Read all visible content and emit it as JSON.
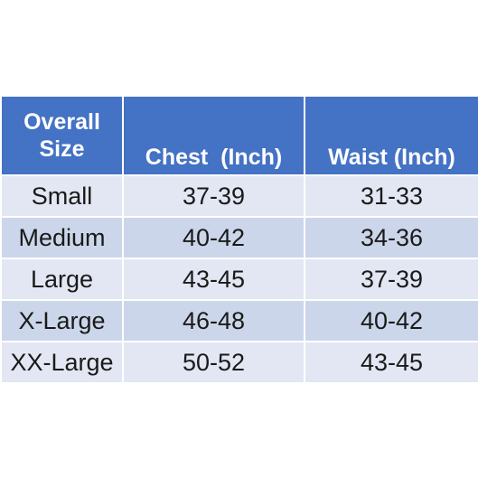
{
  "table": {
    "headers": {
      "size_line1": "Overall",
      "size_line2": "Size",
      "chest": "Chest  (Inch)",
      "waist": "Waist (Inch)"
    },
    "rows": [
      {
        "size": "Small",
        "chest": "37-39",
        "waist": "31-33"
      },
      {
        "size": "Medium",
        "chest": "40-42",
        "waist": "34-36"
      },
      {
        "size": "Large",
        "chest": "43-45",
        "waist": "37-39"
      },
      {
        "size": "X-Large",
        "chest": "46-48",
        "waist": "40-42"
      },
      {
        "size": "XX-Large",
        "chest": "50-52",
        "waist": "43-45"
      }
    ]
  },
  "colors": {
    "header_background": "#4472c4",
    "header_text": "#ffffff",
    "row_light": "#e2e7f3",
    "row_dark": "#ccd6ea"
  }
}
